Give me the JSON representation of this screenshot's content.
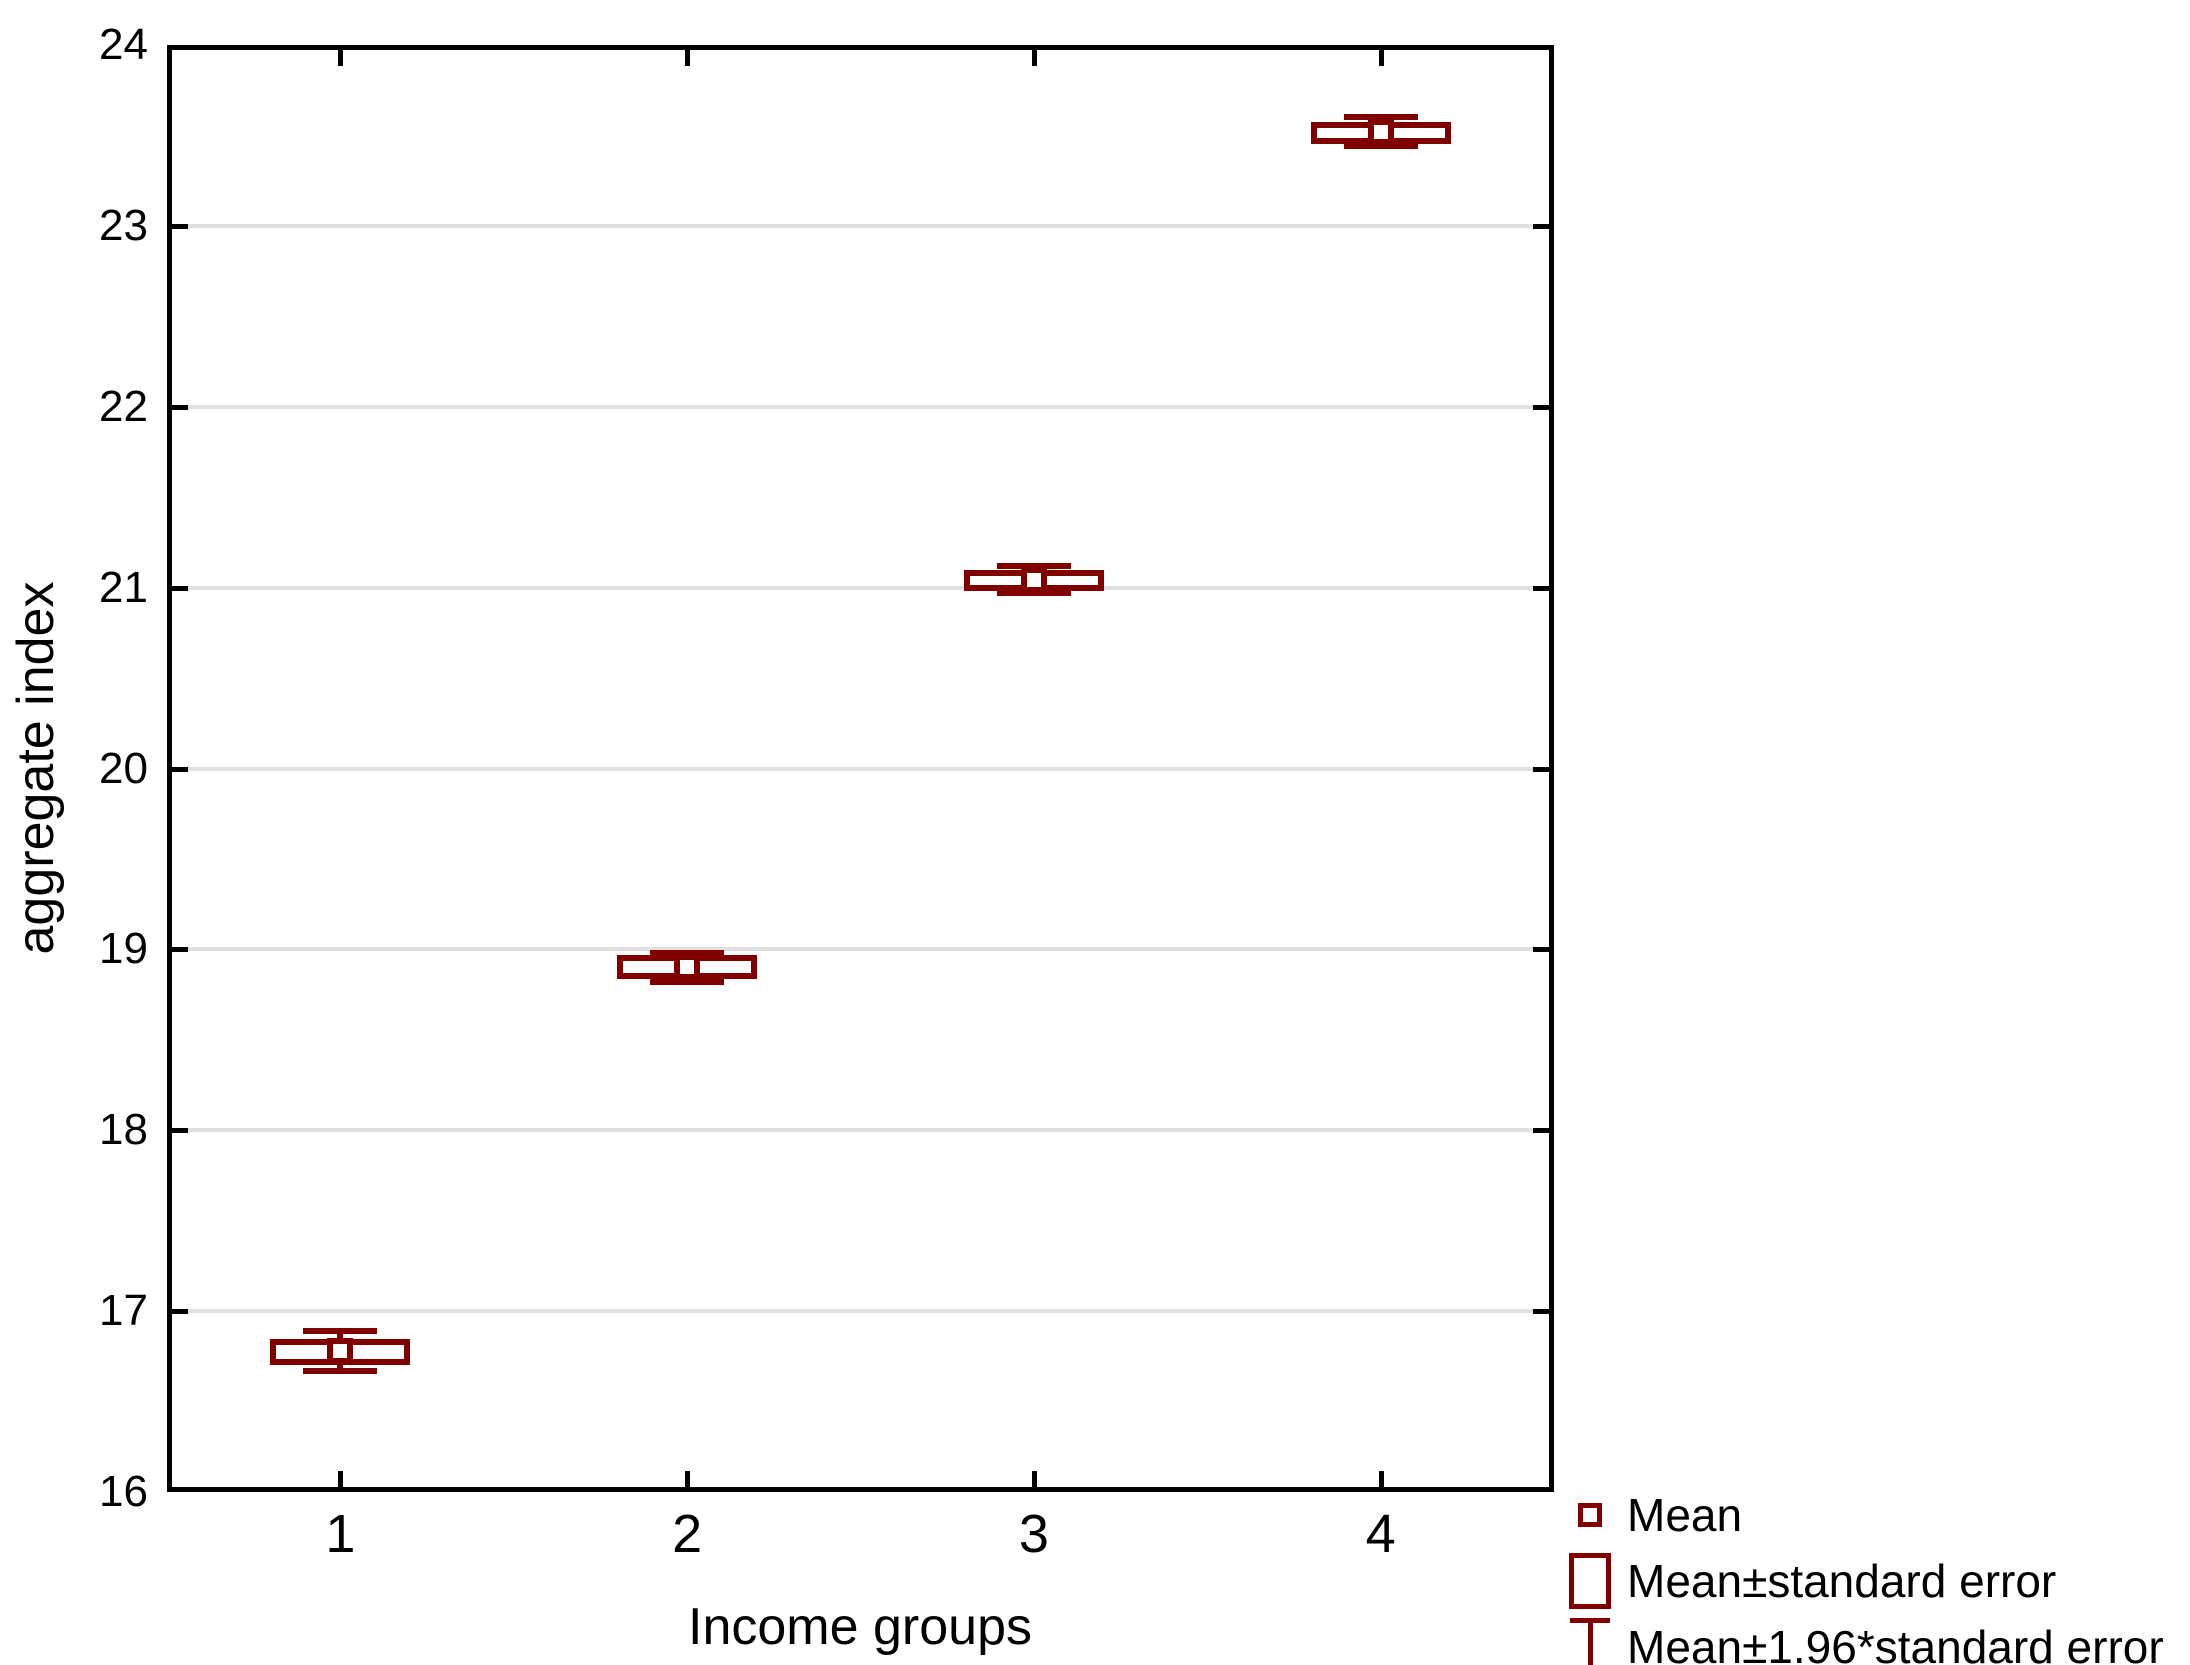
{
  "chart_data": {
    "type": "box",
    "subtype": "means-with-error-boxes",
    "title": "",
    "xlabel": "Income groups",
    "ylabel": "aggregate index",
    "ylim": [
      16,
      24
    ],
    "y_ticks": [
      16,
      17,
      18,
      19,
      20,
      21,
      22,
      23,
      24
    ],
    "x_categories": [
      "1",
      "2",
      "3",
      "4"
    ],
    "grid": "horizontal-light-gray",
    "legend_position": "bottom-right",
    "groups": [
      {
        "category": "1",
        "mean": 16.78,
        "box_low": 16.72,
        "box_high": 16.83,
        "whisker_low": 16.67,
        "whisker_high": 16.89
      },
      {
        "category": "2",
        "mean": 18.9,
        "box_low": 18.85,
        "box_high": 18.95,
        "whisker_low": 18.82,
        "whisker_high": 18.98
      },
      {
        "category": "3",
        "mean": 21.04,
        "box_low": 21.0,
        "box_high": 21.08,
        "whisker_low": 20.97,
        "whisker_high": 21.12
      },
      {
        "category": "4",
        "mean": 23.52,
        "box_low": 23.47,
        "box_high": 23.56,
        "whisker_low": 23.44,
        "whisker_high": 23.6
      }
    ],
    "legend": [
      {
        "marker": "mean-square",
        "label": "Mean"
      },
      {
        "marker": "se-box",
        "label": "Mean±standard error"
      },
      {
        "marker": "ci-ibeam",
        "label": "Mean±1.96*standard error"
      }
    ],
    "colors": {
      "series": "#800000",
      "grid": "#e0e0e0",
      "axis": "#000000",
      "background": "#ffffff"
    }
  }
}
